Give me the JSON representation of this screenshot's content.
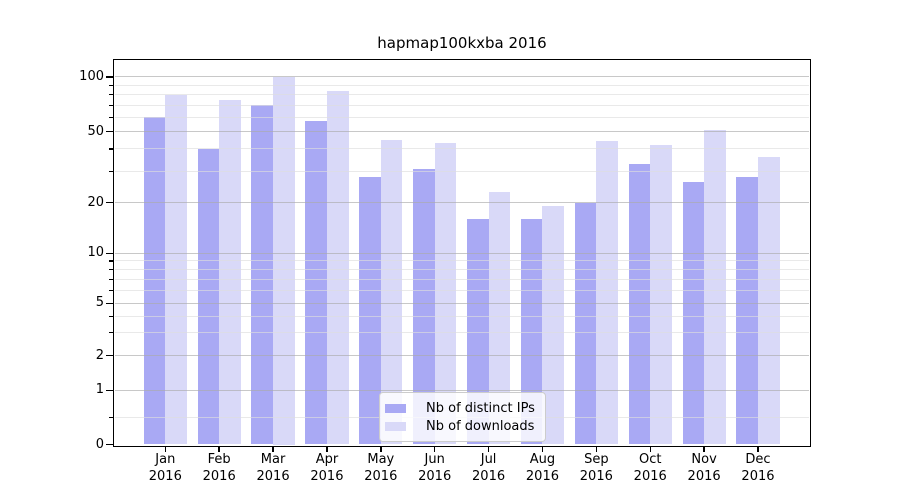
{
  "title": "hapmap100kxba 2016",
  "chart_data": {
    "type": "bar",
    "title": "hapmap100kxba 2016",
    "categories": [
      "Jan",
      "Feb",
      "Mar",
      "Apr",
      "May",
      "Jun",
      "Jul",
      "Aug",
      "Sep",
      "Oct",
      "Nov",
      "Dec"
    ],
    "year": "2016",
    "series": [
      {
        "name": "Nb of distinct IPs",
        "color": "#a9a9f4",
        "values": [
          60,
          40,
          70,
          57,
          28,
          31,
          16,
          16,
          20,
          33,
          26,
          28
        ]
      },
      {
        "name": "Nb of downloads",
        "color": "#d9d9f8",
        "values": [
          80,
          75,
          100,
          84,
          45,
          43,
          23,
          19,
          44,
          42,
          51,
          36
        ]
      }
    ],
    "y_axis": {
      "scale": "symlog",
      "major_ticks": [
        100,
        50,
        20,
        10,
        5,
        2,
        1,
        0
      ],
      "minor_ticks": [
        90,
        80,
        70,
        60,
        40,
        30,
        9,
        8,
        7,
        6,
        4,
        3,
        0.5
      ],
      "ylim": [
        0,
        110
      ]
    },
    "x_axis": {
      "label_line2": "2016"
    },
    "legend": {
      "position": "lower-center",
      "entries": [
        "Nb of distinct IPs",
        "Nb of downloads"
      ]
    },
    "grid": true,
    "colors": {
      "major_grid": "#aaaaaa",
      "minor_grid": "#dddddd",
      "axis": "#000000",
      "background": "#ffffff"
    }
  }
}
